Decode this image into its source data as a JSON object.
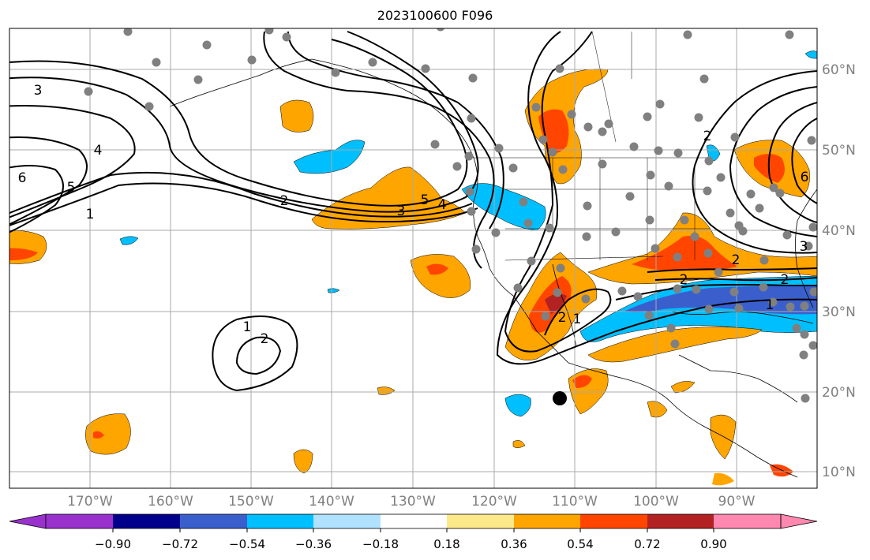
{
  "title": "2023100600 F096",
  "map": {
    "longitude_labels": [
      "170°W",
      "160°W",
      "150°W",
      "140°W",
      "130°W",
      "120°W",
      "110°W",
      "100°W",
      "90°W"
    ],
    "latitude_labels": [
      "60°N",
      "50°N",
      "40°N",
      "30°N",
      "20°N",
      "10°N"
    ],
    "contour_labels": [
      "3",
      "4",
      "6",
      "5",
      "1",
      "2",
      "3",
      "5",
      "4",
      "1",
      "2",
      "2",
      "6",
      "3",
      "2",
      "2",
      "2",
      "1",
      "1",
      "2"
    ],
    "colors": {
      "axis_labels": "#808080",
      "gridline": "#a9a9a9",
      "contour": "#000000",
      "station_dot": "#808080",
      "marker": "#000000"
    }
  },
  "colorbar": {
    "tick_labels": [
      "−0.90",
      "−0.72",
      "−0.54",
      "−0.36",
      "−0.18",
      "0.18",
      "0.36",
      "0.54",
      "0.72",
      "0.90"
    ],
    "colors": [
      "#9932cc",
      "#00008b",
      "#3a5fcd",
      "#00bfff",
      "#b0e2ff",
      "#ffffff",
      "#fce98a",
      "#ffa500",
      "#ff4500",
      "#b22222",
      "#ff88b0"
    ]
  }
}
